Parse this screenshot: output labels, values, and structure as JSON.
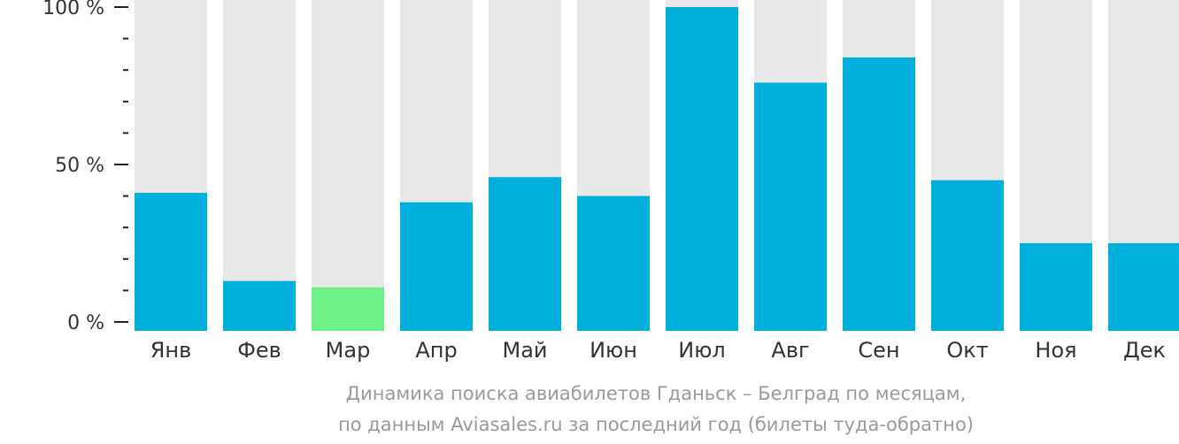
{
  "chart_data": {
    "type": "bar",
    "categories": [
      "Янв",
      "Фев",
      "Мар",
      "Апр",
      "Май",
      "Июн",
      "Июл",
      "Авг",
      "Сен",
      "Окт",
      "Ноя",
      "Дек"
    ],
    "values": [
      41,
      13,
      11,
      38,
      46,
      40,
      100,
      76,
      84,
      45,
      25,
      25
    ],
    "ylim": [
      0,
      100
    ],
    "yticks": [
      {
        "value": 100,
        "label": "100 %"
      },
      {
        "value": 50,
        "label": "50 %"
      },
      {
        "value": 0,
        "label": "0 %"
      }
    ],
    "minor_ticks": [
      10,
      20,
      30,
      40,
      60,
      70,
      80,
      90
    ],
    "highlight_index": 2,
    "colors": {
      "bar": "#00b0dc",
      "highlight": "#6ff18a",
      "background_bar": "#e8e8e8",
      "axis": "#222222"
    },
    "caption_lines": [
      "Динамика поиска авиабилетов Гданьск – Белград по месяцам,",
      "по данным Aviasales.ru за последний год (билеты туда-обратно)"
    ]
  }
}
